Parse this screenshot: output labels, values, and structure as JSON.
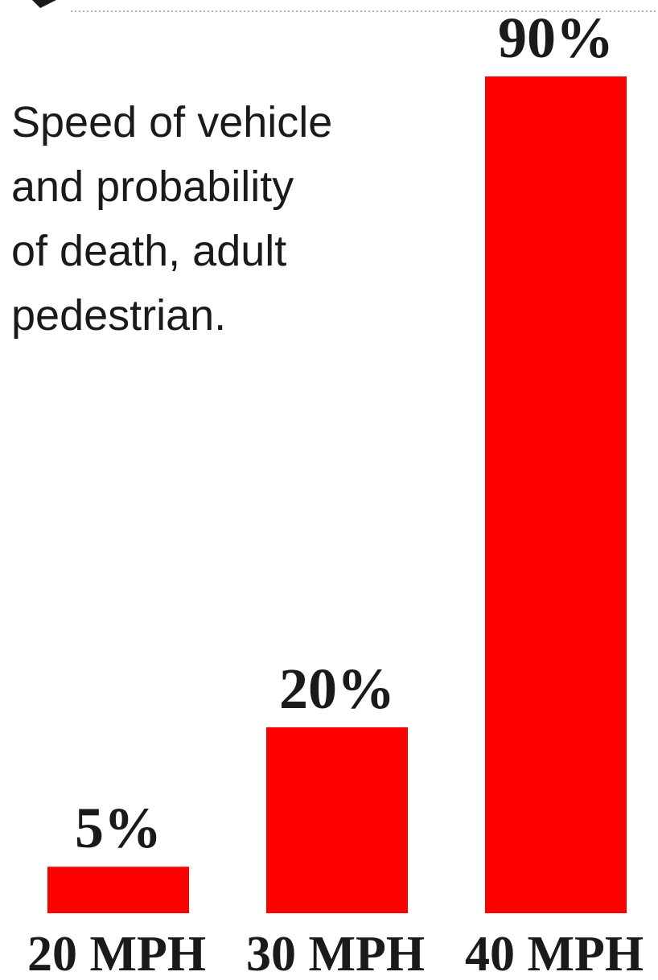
{
  "description": "Speed of vehicle and probability of death, adult pedestrian.",
  "colors": {
    "bar": "#ff0000",
    "text": "#1a1a1a"
  },
  "chart_data": {
    "type": "bar",
    "title": "",
    "xlabel": "",
    "ylabel": "",
    "categories": [
      "20 MPH",
      "30 MPH",
      "40 MPH"
    ],
    "values": [
      5,
      20,
      90
    ],
    "data_labels": [
      "5%",
      "20%",
      "90%"
    ],
    "ylim": [
      0,
      90
    ],
    "grid": false,
    "legend": "none"
  }
}
